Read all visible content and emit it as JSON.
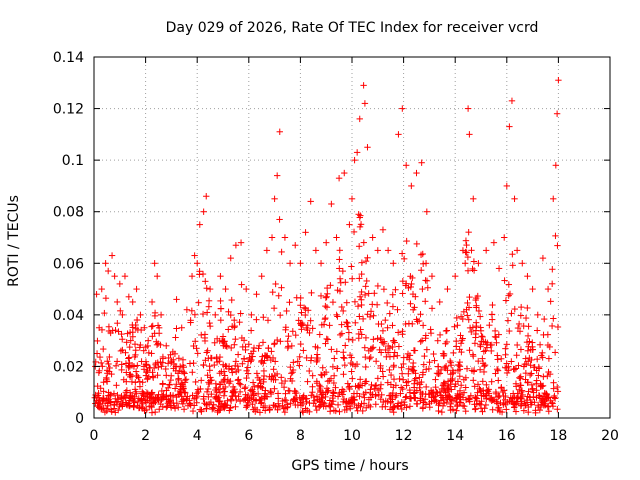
{
  "chart_data": {
    "type": "scatter",
    "title": "Day 029 of 2026, Rate Of TEC Index for receiver vcrd",
    "xlabel": "GPS time / hours",
    "ylabel": "ROTI / TECUs",
    "xlim": [
      0,
      20
    ],
    "ylim": [
      0,
      0.14
    ],
    "xticks": [
      "0",
      "2",
      "4",
      "6",
      "8",
      "10",
      "12",
      "14",
      "16",
      "18",
      "20"
    ],
    "yticks": [
      "0",
      "0.02",
      "0.04",
      "0.06",
      "0.08",
      "0.1",
      "0.12",
      "0.14"
    ],
    "grid": true,
    "marker": "+",
    "marker_color": "#ff0000",
    "data_span_hours": [
      0,
      18
    ],
    "series": [
      {
        "points": [
          [
            0.05,
            0.02
          ],
          [
            0.1,
            0.048
          ],
          [
            0.2,
            0.035
          ],
          [
            0.3,
            0.05
          ],
          [
            0.45,
            0.06
          ],
          [
            0.55,
            0.057
          ],
          [
            0.7,
            0.063
          ],
          [
            0.8,
            0.055
          ],
          [
            0.9,
            0.045
          ],
          [
            1.0,
            0.052
          ],
          [
            1.1,
            0.04
          ],
          [
            1.2,
            0.055
          ],
          [
            1.35,
            0.047
          ],
          [
            1.5,
            0.045
          ],
          [
            1.65,
            0.05
          ],
          [
            1.8,
            0.04
          ],
          [
            1.95,
            0.035
          ],
          [
            2.1,
            0.03
          ],
          [
            2.25,
            0.045
          ],
          [
            2.35,
            0.06
          ],
          [
            2.45,
            0.055
          ],
          [
            2.6,
            0.04
          ],
          [
            2.8,
            0.028
          ],
          [
            3.0,
            0.022
          ],
          [
            3.2,
            0.046
          ],
          [
            3.4,
            0.035
          ],
          [
            3.6,
            0.042
          ],
          [
            3.8,
            0.055
          ],
          [
            3.9,
            0.063
          ],
          [
            4.0,
            0.06
          ],
          [
            4.1,
            0.075
          ],
          [
            4.25,
            0.08
          ],
          [
            4.35,
            0.086
          ],
          [
            4.5,
            0.05
          ],
          [
            4.7,
            0.04
          ],
          [
            4.9,
            0.055
          ],
          [
            5.1,
            0.05
          ],
          [
            5.3,
            0.062
          ],
          [
            5.5,
            0.067
          ],
          [
            5.7,
            0.068
          ],
          [
            5.9,
            0.05
          ],
          [
            6.1,
            0.04
          ],
          [
            6.3,
            0.048
          ],
          [
            6.5,
            0.055
          ],
          [
            6.7,
            0.065
          ],
          [
            6.9,
            0.07
          ],
          [
            7.0,
            0.085
          ],
          [
            7.1,
            0.094
          ],
          [
            7.2,
            0.111
          ],
          [
            7.4,
            0.07
          ],
          [
            7.6,
            0.06
          ],
          [
            7.8,
            0.067
          ],
          [
            8.0,
            0.06
          ],
          [
            8.2,
            0.072
          ],
          [
            8.4,
            0.084
          ],
          [
            8.6,
            0.065
          ],
          [
            8.8,
            0.06
          ],
          [
            9.0,
            0.068
          ],
          [
            9.2,
            0.083
          ],
          [
            9.4,
            0.07
          ],
          [
            9.5,
            0.093
          ],
          [
            9.7,
            0.095
          ],
          [
            9.9,
            0.075
          ],
          [
            10.0,
            0.085
          ],
          [
            10.1,
            0.1
          ],
          [
            10.2,
            0.103
          ],
          [
            10.3,
            0.116
          ],
          [
            10.45,
            0.129
          ],
          [
            10.5,
            0.122
          ],
          [
            10.6,
            0.105
          ],
          [
            10.8,
            0.07
          ],
          [
            11.0,
            0.065
          ],
          [
            11.2,
            0.073
          ],
          [
            11.4,
            0.065
          ],
          [
            11.6,
            0.06
          ],
          [
            11.8,
            0.11
          ],
          [
            11.95,
            0.12
          ],
          [
            12.1,
            0.098
          ],
          [
            12.3,
            0.09
          ],
          [
            12.5,
            0.095
          ],
          [
            12.7,
            0.099
          ],
          [
            12.9,
            0.08
          ],
          [
            13.1,
            0.055
          ],
          [
            13.4,
            0.045
          ],
          [
            13.7,
            0.05
          ],
          [
            14.0,
            0.055
          ],
          [
            14.3,
            0.065
          ],
          [
            14.5,
            0.12
          ],
          [
            14.55,
            0.11
          ],
          [
            14.7,
            0.085
          ],
          [
            14.9,
            0.06
          ],
          [
            15.2,
            0.065
          ],
          [
            15.5,
            0.068
          ],
          [
            15.7,
            0.058
          ],
          [
            15.9,
            0.07
          ],
          [
            16.0,
            0.09
          ],
          [
            16.1,
            0.113
          ],
          [
            16.2,
            0.123
          ],
          [
            16.3,
            0.085
          ],
          [
            16.4,
            0.065
          ],
          [
            16.6,
            0.06
          ],
          [
            16.8,
            0.055
          ],
          [
            17.0,
            0.05
          ],
          [
            17.2,
            0.04
          ],
          [
            17.4,
            0.062
          ],
          [
            17.6,
            0.05
          ],
          [
            17.8,
            0.085
          ],
          [
            17.9,
            0.098
          ],
          [
            17.95,
            0.118
          ],
          [
            18.0,
            0.131
          ]
        ]
      }
    ]
  }
}
